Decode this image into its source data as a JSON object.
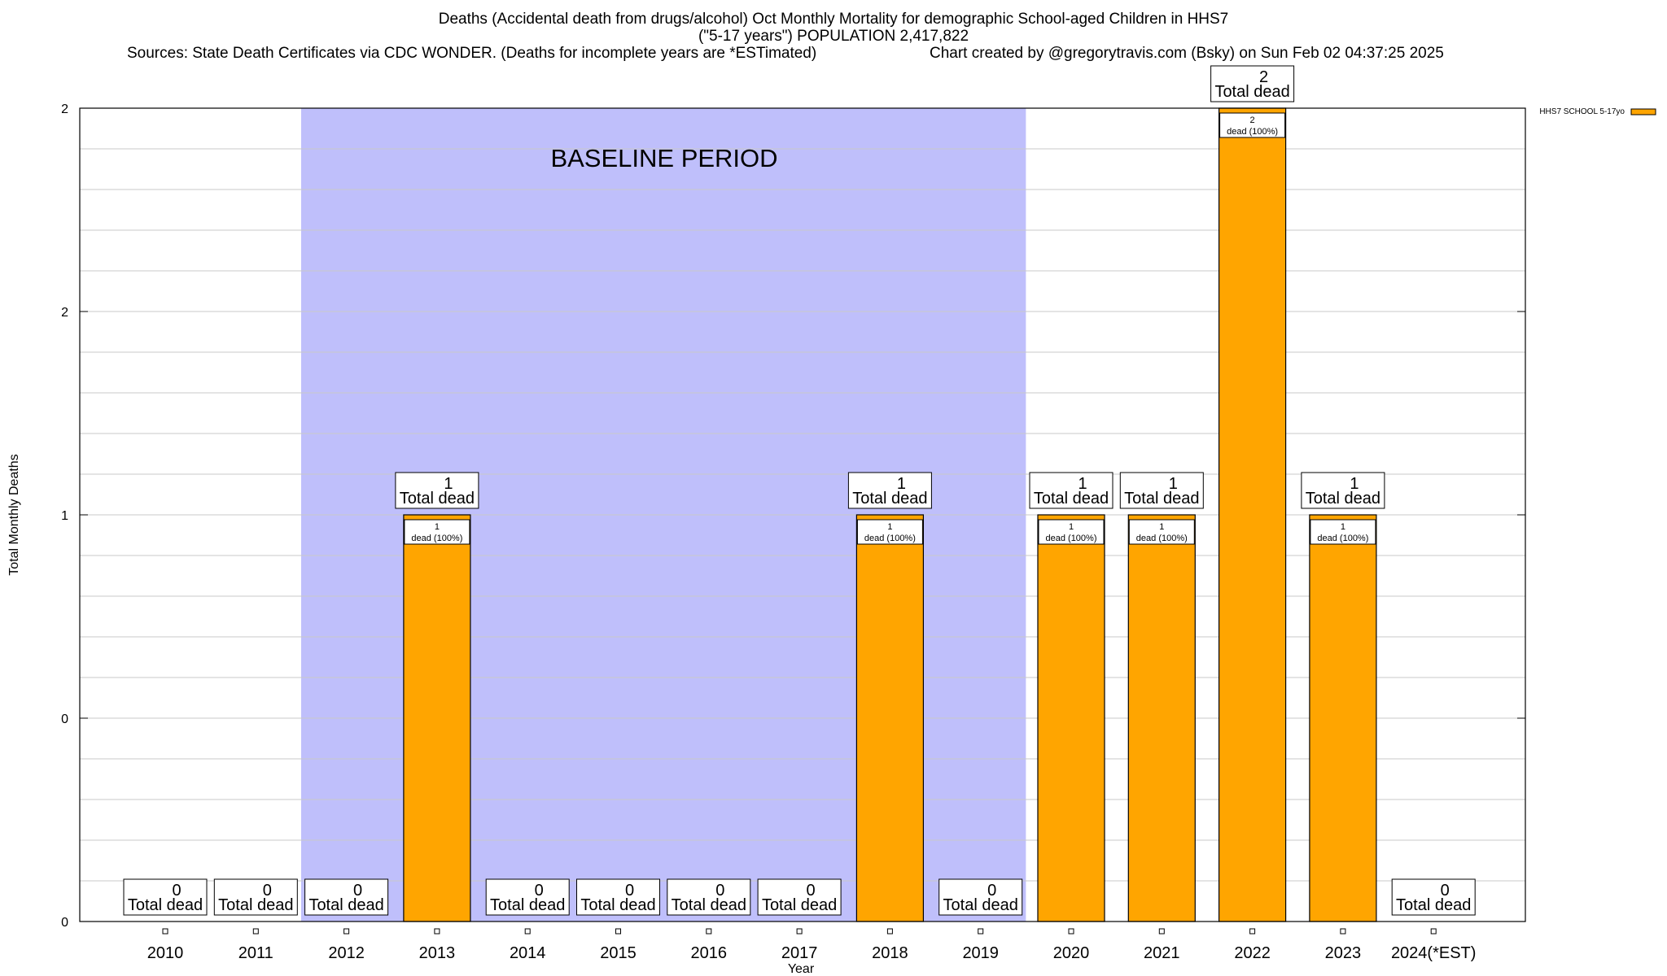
{
  "title": "Deaths (Accidental death from drugs/alcohol) Oct Monthly Mortality for demographic School-aged Children in HHS7",
  "subtitle": "(\"5-17 years\") POPULATION 2,417,822",
  "sources": "Sources: State Death Certificates via CDC WONDER. (Deaths for incomplete years are *ESTimated)",
  "credit": "Chart created by @gregorytravis.com (Bsky) on Sun Feb 02 04:37:25 2025",
  "colors": {
    "bar": "#ffa500",
    "baseline": "#bfbffb",
    "grid": "#c8c8c8"
  },
  "chart_data": {
    "type": "bar",
    "title": "Deaths (Accidental death from drugs/alcohol) Oct Monthly Mortality for demographic School-aged Children in HHS7",
    "xlabel": "Year",
    "ylabel": "Total Monthly Deaths",
    "ylim": [
      0,
      2
    ],
    "yticks": [
      0,
      0.5,
      1,
      1.5,
      2
    ],
    "ytick_labels": [
      "0",
      "0",
      "1",
      "2",
      "2"
    ],
    "categories": [
      "2010",
      "2011",
      "2012",
      "2013",
      "2014",
      "2015",
      "2016",
      "2017",
      "2018",
      "2019",
      "2020",
      "2021",
      "2022",
      "2023",
      "2024(*EST)"
    ],
    "series": [
      {
        "name": "HHS7 SCHOOL 5-17yo",
        "values": [
          0,
          0,
          0,
          1,
          0,
          0,
          0,
          0,
          1,
          0,
          1,
          1,
          2,
          1,
          0
        ]
      }
    ],
    "total_label": "Total dead",
    "share_label": "dead (100%)",
    "annotations": [
      {
        "text": "BASELINE PERIOD",
        "x_start": "2012",
        "x_end": "2019"
      }
    ],
    "legend": "top-right",
    "grid": true
  }
}
